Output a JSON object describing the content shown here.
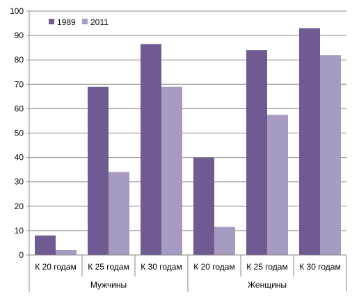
{
  "chart_data": {
    "type": "bar",
    "title": "",
    "xlabel": "",
    "ylabel": "",
    "ylim": [
      0,
      100
    ],
    "yticks": [
      0,
      10,
      20,
      30,
      40,
      50,
      60,
      70,
      80,
      90,
      100
    ],
    "grid": true,
    "legend_position": "top-left",
    "groups": [
      {
        "label": "Мужчины",
        "categories": [
          "К 20 годам",
          "К 25 годам",
          "К 30 годам"
        ]
      },
      {
        "label": "Женщины",
        "categories": [
          "К 20 годам",
          "К 25 годам",
          "К 30 годам"
        ]
      }
    ],
    "categories": [
      "К 20 годам",
      "К 25 годам",
      "К 30 годам",
      "К 20 годам",
      "К 25 годам",
      "К 30 годам"
    ],
    "series": [
      {
        "name": "1989",
        "color": "#705a92",
        "values": [
          8,
          69,
          86.5,
          40,
          84,
          93
        ]
      },
      {
        "name": "2011",
        "color": "#a79bc2",
        "values": [
          2,
          34,
          69,
          11.5,
          57.5,
          82
        ]
      }
    ]
  }
}
